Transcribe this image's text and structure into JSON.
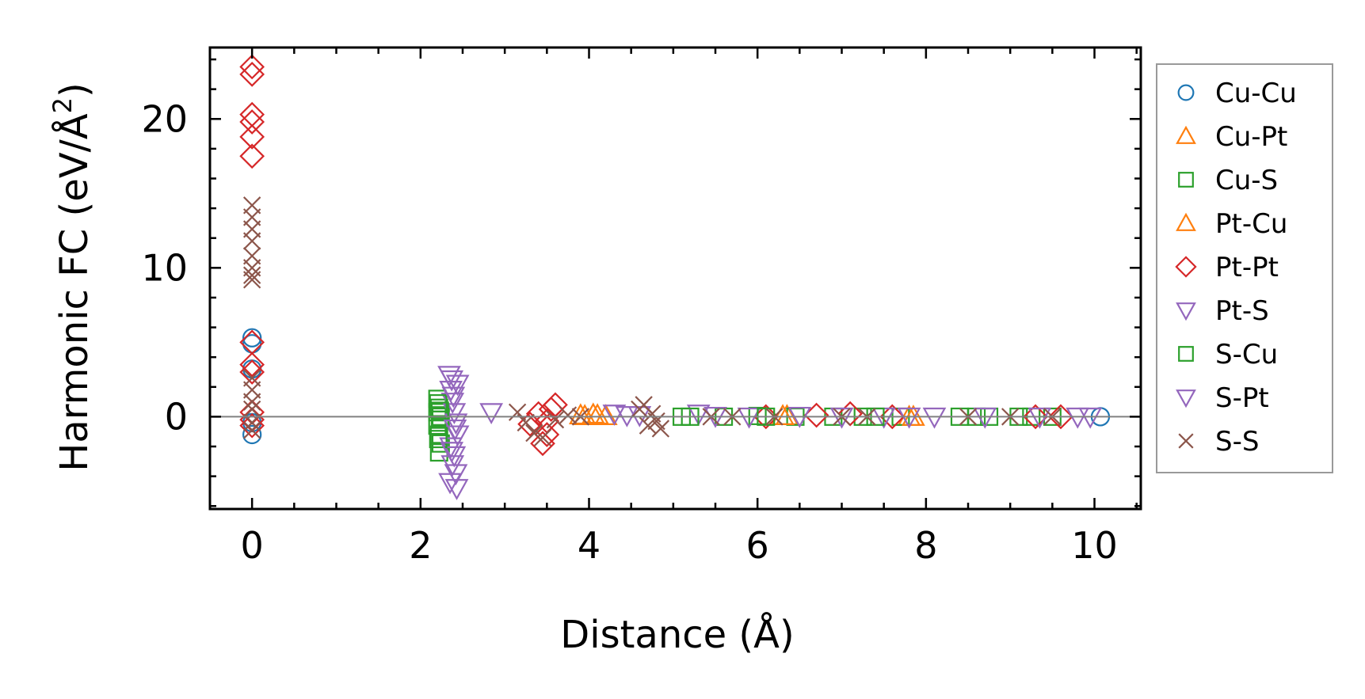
{
  "chart_data": {
    "type": "scatter",
    "xlabel": "Distance (Å)",
    "ylabel_main": "Harmonic FC (eV/Å",
    "ylabel_sup": "2",
    "ylabel_end": ")",
    "xlim": [
      -0.5,
      10.55
    ],
    "ylim": [
      -6.2,
      24.8
    ],
    "xticks": [
      0,
      2,
      4,
      6,
      8,
      10
    ],
    "xtick_labels": [
      "0",
      "2",
      "4",
      "6",
      "8",
      "10"
    ],
    "yticks": [
      0,
      10,
      20
    ],
    "ytick_labels": [
      "0",
      "10",
      "20"
    ],
    "grid": false,
    "legend_position": "right",
    "zero_line": true,
    "series": [
      {
        "name": "Cu-Cu",
        "marker": "circle",
        "color": "#1f77b4",
        "x": [
          0,
          0,
          0,
          0,
          0,
          10.07
        ],
        "y": [
          5.3,
          4.9,
          3.2,
          -0.4,
          -1.2,
          0
        ]
      },
      {
        "name": "Cu-Pt",
        "marker": "triangle-up",
        "color": "#ff7f0e",
        "x": [
          3.9,
          4.05,
          4.2,
          6.35,
          7.8
        ],
        "y": [
          0.1,
          0.15,
          0.05,
          0.05,
          0
        ]
      },
      {
        "name": "Cu-S",
        "marker": "square",
        "color": "#2ca02c",
        "x": [
          2.2,
          2.22,
          2.24,
          2.2,
          2.22,
          2.24,
          2.2,
          2.22,
          5.1,
          5.6,
          6.0,
          6.45,
          6.9,
          7.25,
          7.7,
          8.4,
          8.6,
          8.75,
          9.1,
          9.25,
          9.5
        ],
        "y": [
          1.2,
          0.6,
          0.0,
          -0.6,
          -1.2,
          -1.8,
          0.3,
          -2.4,
          0,
          0,
          0.05,
          0,
          0,
          0,
          0,
          0,
          0,
          0,
          0,
          0,
          0
        ]
      },
      {
        "name": "Pt-Cu",
        "marker": "triangle-up",
        "color": "#ff7f0e",
        "x": [
          3.95,
          4.1,
          6.3,
          7.85
        ],
        "y": [
          0.05,
          0.1,
          0.05,
          0
        ]
      },
      {
        "name": "Pt-Pt",
        "marker": "diamond",
        "color": "#d62728",
        "x": [
          0,
          0,
          0,
          0,
          0,
          0,
          0,
          0,
          0,
          0,
          0,
          0,
          3.3,
          3.45,
          3.5,
          3.55,
          3.6,
          3.4,
          3.5,
          6.1,
          6.7,
          7.1,
          7.6,
          9.3,
          9.6
        ],
        "y": [
          23.5,
          23.0,
          20.3,
          19.8,
          18.8,
          17.5,
          5.0,
          3.5,
          3.0,
          -0.2,
          0.3,
          -0.6,
          -0.5,
          -1.8,
          -1.2,
          0.5,
          0.8,
          0.2,
          -0.3,
          0,
          0.1,
          0.2,
          0,
          0,
          0
        ]
      },
      {
        "name": "Pt-S",
        "marker": "triangle-down",
        "color": "#9467bd",
        "x": [
          2.34,
          2.36,
          2.38,
          2.4,
          2.42,
          2.44,
          2.36,
          2.4,
          2.38,
          2.42,
          2.35,
          2.44,
          2.84,
          4.3,
          4.6,
          5.3,
          5.9,
          6.5,
          7.0,
          7.5,
          8.1,
          8.7,
          9.35,
          9.8,
          9.95
        ],
        "y": [
          2.8,
          1.8,
          1.0,
          0.3,
          -0.4,
          -1.2,
          -2.0,
          -2.6,
          -3.2,
          -3.8,
          -4.4,
          2.2,
          0.3,
          0.2,
          0.1,
          0.2,
          0,
          0.05,
          0,
          0,
          0,
          0,
          0,
          0,
          0
        ]
      },
      {
        "name": "S-Cu",
        "marker": "square",
        "color": "#2ca02c",
        "x": [
          2.21,
          2.23,
          2.21,
          2.23,
          5.2,
          6.1,
          7.4
        ],
        "y": [
          0.9,
          -0.2,
          -1.5,
          0.4,
          0,
          0,
          0
        ]
      },
      {
        "name": "S-Pt",
        "marker": "triangle-down",
        "color": "#9467bd",
        "x": [
          2.37,
          2.39,
          2.41,
          2.37,
          2.43,
          4.45,
          5.5,
          7.8
        ],
        "y": [
          2.5,
          1.4,
          -0.8,
          -2.3,
          -4.8,
          0.1,
          0.05,
          0
        ]
      },
      {
        "name": "S-S",
        "marker": "x",
        "color": "#8c564b",
        "x": [
          0,
          0,
          0,
          0,
          0,
          0,
          0,
          0,
          0,
          0,
          0,
          0,
          0,
          0,
          3.15,
          3.25,
          3.35,
          3.45,
          3.6,
          3.75,
          3.9,
          4.65,
          4.75,
          4.7,
          4.8,
          4.6,
          4.85,
          5.45,
          5.7,
          6.2,
          7.0,
          7.3,
          8.5,
          9.0,
          9.5
        ],
        "y": [
          14.2,
          13.4,
          12.6,
          11.8,
          10.8,
          10.0,
          9.5,
          9.2,
          2.6,
          1.8,
          1.0,
          0.5,
          -0.4,
          -0.9,
          0.3,
          -0.4,
          -1.1,
          -1.4,
          -0.2,
          0.1,
          0,
          0.8,
          0.2,
          -0.6,
          -0.3,
          0.5,
          -0.8,
          0,
          0,
          0,
          0,
          0,
          0,
          0,
          0
        ]
      }
    ]
  }
}
